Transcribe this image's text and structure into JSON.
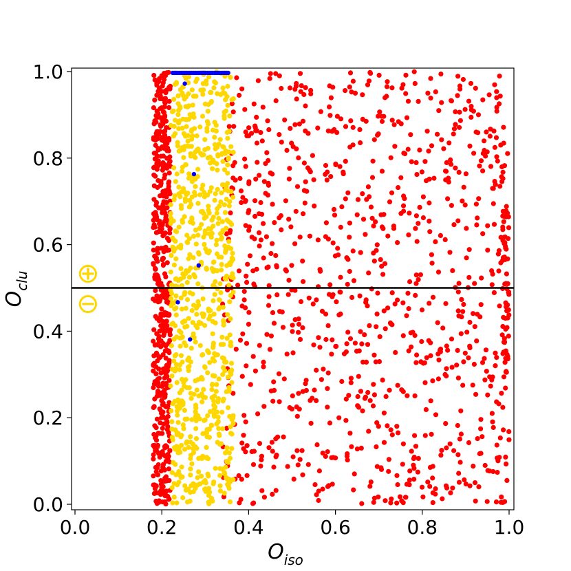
{
  "chart_data": {
    "type": "scatter",
    "xlabel": {
      "main": "O",
      "sub": "iso"
    },
    "ylabel": {
      "main": "O",
      "sub": "clu"
    },
    "xlim": [
      0.0,
      1.0
    ],
    "ylim": [
      0.0,
      1.0
    ],
    "xticks": [
      "0.0",
      "0.2",
      "0.4",
      "0.6",
      "0.8",
      "1.0"
    ],
    "yticks": [
      "0.0",
      "0.2",
      "0.4",
      "0.6",
      "0.8",
      "1.0"
    ],
    "grid": false,
    "hline": {
      "y": 0.5,
      "color": "#000000"
    },
    "annotations": [
      {
        "text": "⊕",
        "x": 0.03,
        "y": 0.535,
        "color": "#ffd700"
      },
      {
        "text": "⊖",
        "x": 0.03,
        "y": 0.465,
        "color": "#ffd700"
      }
    ],
    "series": [
      {
        "color": "#ff0000",
        "region": [
          {
            "x": [
              0.18,
              0.22
            ],
            "y": [
              0.0,
              1.0
            ],
            "count": 520
          },
          {
            "x": [
              0.34,
              1.0
            ],
            "y": [
              0.0,
              1.0
            ],
            "count": 950
          },
          {
            "x": [
              0.985,
              1.0
            ],
            "y": [
              0.3,
              0.7
            ],
            "count": 60
          }
        ]
      },
      {
        "color": "#ffd700",
        "region": [
          {
            "x": [
              0.22,
              0.365
            ],
            "y": [
              0.0,
              1.0
            ],
            "count": 780
          }
        ]
      },
      {
        "color": "#0000ff",
        "points": [
          [
            0.253,
            0.972
          ],
          [
            0.274,
            0.763
          ],
          [
            0.285,
            0.552
          ],
          [
            0.237,
            0.467
          ],
          [
            0.265,
            0.381
          ]
        ],
        "line": {
          "x": [
            0.225,
            0.355
          ],
          "y": 0.997
        }
      }
    ]
  }
}
